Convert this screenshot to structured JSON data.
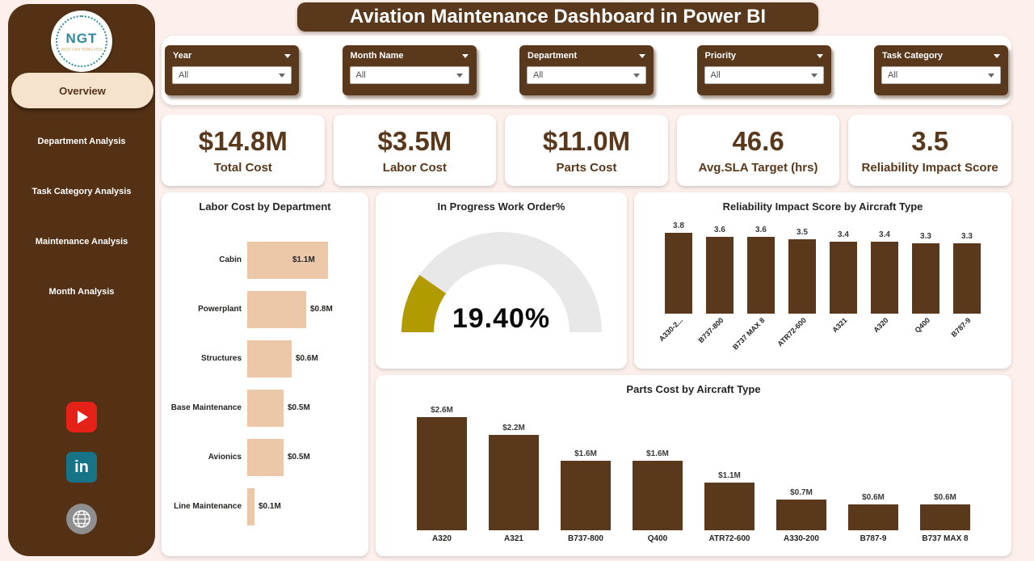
{
  "page": {
    "title": "Aviation Maintenance Dashboard in Power BI",
    "background": "#fdf0ec"
  },
  "colors": {
    "primary_brown": "#5a381c",
    "sidebar_brown": "#543114",
    "tan_bar": "#ecc8a8",
    "gauge_fill": "#b29b00",
    "gauge_track": "#e8e8e8",
    "youtube_red": "#e62117",
    "linkedin_teal": "#177487"
  },
  "sidebar": {
    "logo": {
      "text": "NGT",
      "subtext": "NEXT GEN TEMPLATES"
    },
    "items": [
      {
        "label": "Overview",
        "active": true
      },
      {
        "label": "Department Analysis",
        "active": false
      },
      {
        "label": "Task Category Analysis",
        "active": false
      },
      {
        "label": "Maintenance Analysis",
        "active": false
      },
      {
        "label": "Month Analysis",
        "active": false
      }
    ],
    "social": [
      {
        "name": "youtube"
      },
      {
        "name": "linkedin",
        "text": "in"
      },
      {
        "name": "website"
      }
    ]
  },
  "filters": [
    {
      "label": "Year",
      "value": "All"
    },
    {
      "label": "Month Name",
      "value": "All"
    },
    {
      "label": "Department",
      "value": "All"
    },
    {
      "label": "Priority",
      "value": "All"
    },
    {
      "label": "Task Category",
      "value": "All"
    }
  ],
  "kpis": [
    {
      "value": "$14.8M",
      "label": "Total Cost"
    },
    {
      "value": "$3.5M",
      "label": "Labor Cost"
    },
    {
      "value": "$11.0M",
      "label": "Parts Cost"
    },
    {
      "value": "46.6",
      "label": "Avg.SLA Target (hrs)"
    },
    {
      "value": "3.5",
      "label": "Reliability Impact Score"
    }
  ],
  "chart_data": [
    {
      "type": "bar",
      "orientation": "horizontal",
      "title": "Labor Cost by Department",
      "categories": [
        "Cabin",
        "Powerplant",
        "Structures",
        "Base Maintenance",
        "Avionics",
        "Line Maintenance"
      ],
      "values": [
        1.1,
        0.8,
        0.6,
        0.5,
        0.5,
        0.1
      ],
      "value_labels": [
        "$1.1M",
        "$0.8M",
        "$0.6M",
        "$0.5M",
        "$0.5M",
        "$0.1M"
      ],
      "unit": "USD millions",
      "bar_color": "#ecc8a8",
      "xlim": [
        0,
        1.2
      ]
    },
    {
      "type": "gauge",
      "title": "In Progress Work Order%",
      "value": 19.4,
      "display": "19.40%",
      "min": 0,
      "max": 100,
      "fill_color": "#b29b00",
      "track_color": "#e8e8e8"
    },
    {
      "type": "bar",
      "title": "Reliability Impact Score by Aircraft Type",
      "categories": [
        "A330-2...",
        "B737-800",
        "B737 MAX 8",
        "ATR72-600",
        "A321",
        "A320",
        "Q400",
        "B787-9"
      ],
      "values": [
        3.8,
        3.6,
        3.6,
        3.5,
        3.4,
        3.4,
        3.3,
        3.3
      ],
      "bar_color": "#5a381c",
      "ylim": [
        0,
        4
      ]
    },
    {
      "type": "bar",
      "title": "Parts Cost by Aircraft Type",
      "categories": [
        "A320",
        "A321",
        "B737-800",
        "Q400",
        "ATR72-600",
        "A330-200",
        "B787-9",
        "B737 MAX 8"
      ],
      "values": [
        2.6,
        2.2,
        1.6,
        1.6,
        1.1,
        0.7,
        0.6,
        0.6
      ],
      "value_labels": [
        "$2.6M",
        "$2.2M",
        "$1.6M",
        "$1.6M",
        "$1.1M",
        "$0.7M",
        "$0.6M",
        "$0.6M"
      ],
      "unit": "USD millions",
      "bar_color": "#5a381c",
      "ylim": [
        0,
        3
      ]
    }
  ]
}
